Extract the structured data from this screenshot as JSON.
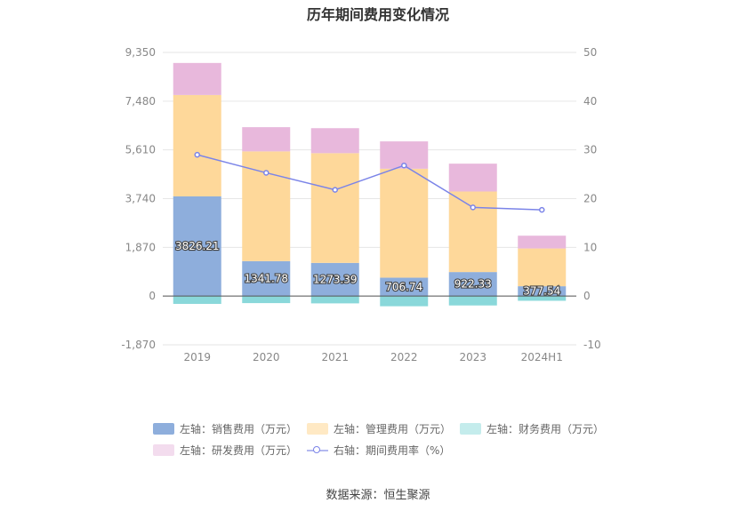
{
  "chart_data": {
    "type": "bar",
    "title": "历年期间费用变化情况",
    "categories": [
      "2019",
      "2020",
      "2021",
      "2022",
      "2023",
      "2024H1"
    ],
    "stacked": true,
    "left_axis": {
      "ylim": [
        -1870,
        9350
      ],
      "ticks": [
        "9,350",
        "7,480",
        "5,610",
        "3,740",
        "1,870",
        "0",
        "-1,870"
      ],
      "tick_values": [
        9350,
        7480,
        5610,
        3740,
        1870,
        0,
        -1870
      ]
    },
    "right_axis": {
      "ylim": [
        -10,
        50
      ],
      "ticks": [
        "50",
        "40",
        "30",
        "20",
        "10",
        "0",
        "-10"
      ],
      "tick_values": [
        50,
        40,
        30,
        20,
        10,
        0,
        -10
      ]
    },
    "series": [
      {
        "name": "左轴：销售费用（万元）",
        "axis": "left",
        "color": "#8eaedc",
        "values": [
          3826.21,
          1341.78,
          1273.39,
          706.74,
          922.33,
          377.54
        ],
        "labels": [
          "3826.21",
          "1341.78",
          "1273.39",
          "706.74",
          "922.33",
          "377.54"
        ]
      },
      {
        "name": "左轴：管理费用（万元）",
        "axis": "left",
        "color": "#fed89a",
        "values": [
          3890,
          4210,
          4210,
          4180,
          3090,
          1450
        ]
      },
      {
        "name": "左轴：财务费用（万元）",
        "axis": "left",
        "color": "#8ad8da",
        "values": [
          -300,
          -270,
          -280,
          -390,
          -360,
          -180
        ]
      },
      {
        "name": "左轴：研发费用（万元）",
        "axis": "left",
        "color": "#e8b8dc",
        "values": [
          1230,
          930,
          960,
          1050,
          1070,
          490
        ]
      },
      {
        "name": "右轴：期间费用率（%）",
        "axis": "right",
        "type": "line",
        "color": "#7b84e8",
        "values": [
          29.0,
          25.3,
          21.8,
          26.8,
          18.2,
          17.7
        ]
      }
    ]
  },
  "legend": {
    "sales": "左轴：销售费用（万元）",
    "admin": "左轴：管理费用（万元）",
    "finance": "左轴：财务费用（万元）",
    "rnd": "左轴：研发费用（万元）",
    "rate": "右轴：期间费用率（%）"
  },
  "source": "数据来源：恒生聚源"
}
